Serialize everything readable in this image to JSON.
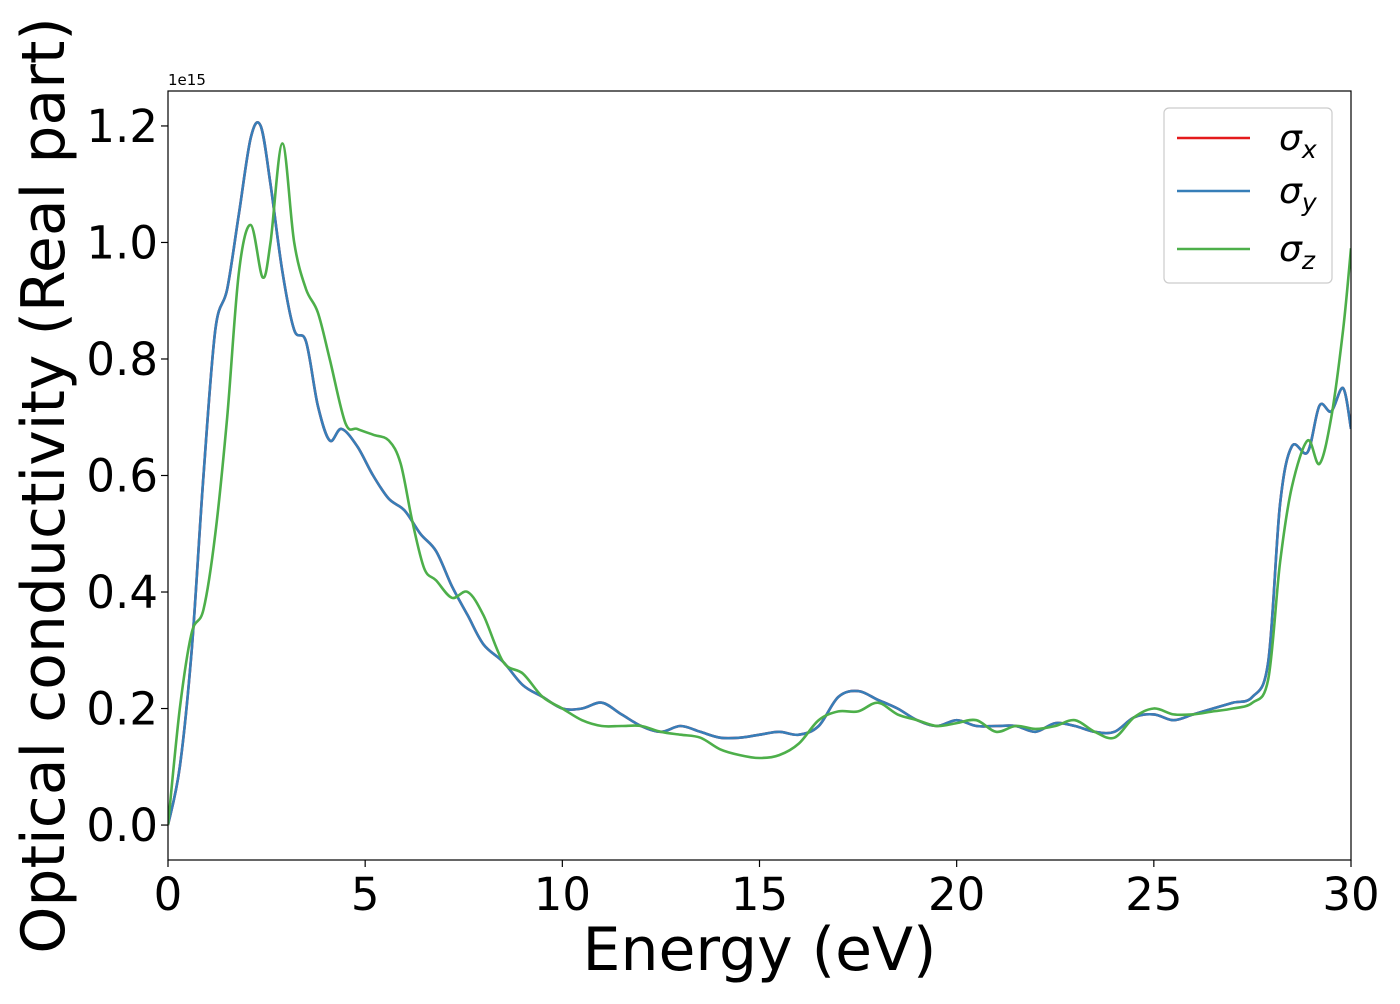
{
  "chart_data": {
    "type": "line",
    "xlabel": "Energy (eV)",
    "ylabel": "Optical conductivity (Real part)",
    "offset_text": "1e15",
    "xlim": [
      0,
      30
    ],
    "ylim": [
      -0.06,
      1.26
    ],
    "xticks": [
      0,
      5,
      10,
      15,
      20,
      25,
      30
    ],
    "yticks": [
      0.0,
      0.2,
      0.4,
      0.6,
      0.8,
      1.0,
      1.2
    ],
    "xtick_labels": [
      "0",
      "5",
      "10",
      "15",
      "20",
      "25",
      "30"
    ],
    "ytick_labels": [
      "0.0",
      "0.2",
      "0.4",
      "0.6",
      "0.8",
      "1.0",
      "1.2"
    ],
    "grid": false,
    "legend_position": "top-right",
    "series": [
      {
        "name": "σx",
        "sym": "σ",
        "sub": "x",
        "color": "#e41a1c",
        "x": [
          0,
          0.3,
          0.6,
          0.9,
          1.2,
          1.5,
          1.8,
          2.1,
          2.35,
          2.6,
          2.9,
          3.2,
          3.5,
          3.8,
          4.1,
          4.4,
          4.8,
          5.2,
          5.6,
          6.0,
          6.4,
          6.8,
          7.2,
          7.6,
          8.0,
          8.5,
          9.0,
          9.5,
          10.0,
          10.5,
          11.0,
          11.5,
          12.0,
          12.5,
          13.0,
          13.5,
          14.0,
          14.5,
          15.0,
          15.5,
          16.0,
          16.5,
          17.0,
          17.5,
          18.0,
          18.5,
          19.0,
          19.5,
          20.0,
          20.5,
          21.0,
          21.5,
          22.0,
          22.5,
          23.0,
          23.5,
          24.0,
          24.5,
          25.0,
          25.5,
          26.0,
          26.5,
          27.0,
          27.5,
          27.9,
          28.2,
          28.5,
          28.9,
          29.2,
          29.5,
          29.8,
          30.0
        ],
        "y": [
          0.0,
          0.1,
          0.3,
          0.6,
          0.85,
          0.92,
          1.05,
          1.18,
          1.2,
          1.1,
          0.95,
          0.85,
          0.83,
          0.72,
          0.66,
          0.68,
          0.65,
          0.6,
          0.56,
          0.54,
          0.5,
          0.47,
          0.41,
          0.36,
          0.31,
          0.28,
          0.24,
          0.22,
          0.2,
          0.2,
          0.21,
          0.19,
          0.17,
          0.16,
          0.17,
          0.16,
          0.15,
          0.15,
          0.155,
          0.16,
          0.155,
          0.17,
          0.22,
          0.23,
          0.215,
          0.2,
          0.18,
          0.17,
          0.18,
          0.17,
          0.17,
          0.17,
          0.16,
          0.175,
          0.17,
          0.16,
          0.16,
          0.185,
          0.19,
          0.18,
          0.19,
          0.2,
          0.21,
          0.22,
          0.28,
          0.55,
          0.65,
          0.64,
          0.72,
          0.71,
          0.75,
          0.68
        ]
      },
      {
        "name": "σy",
        "sym": "σ",
        "sub": "y",
        "color": "#377eb8",
        "x": [
          0,
          0.3,
          0.6,
          0.9,
          1.2,
          1.5,
          1.8,
          2.1,
          2.35,
          2.6,
          2.9,
          3.2,
          3.5,
          3.8,
          4.1,
          4.4,
          4.8,
          5.2,
          5.6,
          6.0,
          6.4,
          6.8,
          7.2,
          7.6,
          8.0,
          8.5,
          9.0,
          9.5,
          10.0,
          10.5,
          11.0,
          11.5,
          12.0,
          12.5,
          13.0,
          13.5,
          14.0,
          14.5,
          15.0,
          15.5,
          16.0,
          16.5,
          17.0,
          17.5,
          18.0,
          18.5,
          19.0,
          19.5,
          20.0,
          20.5,
          21.0,
          21.5,
          22.0,
          22.5,
          23.0,
          23.5,
          24.0,
          24.5,
          25.0,
          25.5,
          26.0,
          26.5,
          27.0,
          27.5,
          27.9,
          28.2,
          28.5,
          28.9,
          29.2,
          29.5,
          29.8,
          30.0
        ],
        "y": [
          0.0,
          0.1,
          0.3,
          0.6,
          0.85,
          0.92,
          1.05,
          1.18,
          1.2,
          1.1,
          0.95,
          0.85,
          0.83,
          0.72,
          0.66,
          0.68,
          0.65,
          0.6,
          0.56,
          0.54,
          0.5,
          0.47,
          0.41,
          0.36,
          0.31,
          0.28,
          0.24,
          0.22,
          0.2,
          0.2,
          0.21,
          0.19,
          0.17,
          0.16,
          0.17,
          0.16,
          0.15,
          0.15,
          0.155,
          0.16,
          0.155,
          0.17,
          0.22,
          0.23,
          0.215,
          0.2,
          0.18,
          0.17,
          0.18,
          0.17,
          0.17,
          0.17,
          0.16,
          0.175,
          0.17,
          0.16,
          0.16,
          0.185,
          0.19,
          0.18,
          0.19,
          0.2,
          0.21,
          0.22,
          0.28,
          0.55,
          0.65,
          0.64,
          0.72,
          0.71,
          0.75,
          0.68
        ]
      },
      {
        "name": "σz",
        "sym": "σ",
        "sub": "z",
        "color": "#4daf4a",
        "x": [
          0,
          0.3,
          0.6,
          0.9,
          1.2,
          1.5,
          1.8,
          2.1,
          2.4,
          2.6,
          2.9,
          3.2,
          3.5,
          3.8,
          4.1,
          4.5,
          4.8,
          5.2,
          5.6,
          5.9,
          6.2,
          6.5,
          6.8,
          7.2,
          7.6,
          8.0,
          8.5,
          9.0,
          9.5,
          10.0,
          10.5,
          11.0,
          11.5,
          12.0,
          12.5,
          13.0,
          13.5,
          14.0,
          14.5,
          15.0,
          15.5,
          16.0,
          16.5,
          17.0,
          17.5,
          18.0,
          18.5,
          19.0,
          19.5,
          20.0,
          20.5,
          21.0,
          21.5,
          22.0,
          22.5,
          23.0,
          23.5,
          24.0,
          24.5,
          25.0,
          25.5,
          26.0,
          26.5,
          27.0,
          27.5,
          27.9,
          28.2,
          28.5,
          28.9,
          29.2,
          29.5,
          29.8,
          30.0
        ],
        "y": [
          0.0,
          0.2,
          0.33,
          0.37,
          0.5,
          0.7,
          0.95,
          1.03,
          0.94,
          1.0,
          1.17,
          1.0,
          0.92,
          0.88,
          0.8,
          0.69,
          0.68,
          0.67,
          0.66,
          0.62,
          0.52,
          0.44,
          0.42,
          0.39,
          0.4,
          0.36,
          0.28,
          0.26,
          0.22,
          0.2,
          0.18,
          0.17,
          0.17,
          0.17,
          0.16,
          0.155,
          0.15,
          0.13,
          0.12,
          0.115,
          0.12,
          0.14,
          0.18,
          0.195,
          0.195,
          0.21,
          0.19,
          0.18,
          0.17,
          0.175,
          0.18,
          0.16,
          0.17,
          0.165,
          0.17,
          0.18,
          0.16,
          0.15,
          0.185,
          0.2,
          0.19,
          0.19,
          0.195,
          0.2,
          0.21,
          0.25,
          0.45,
          0.58,
          0.66,
          0.62,
          0.7,
          0.85,
          0.99
        ]
      }
    ]
  }
}
